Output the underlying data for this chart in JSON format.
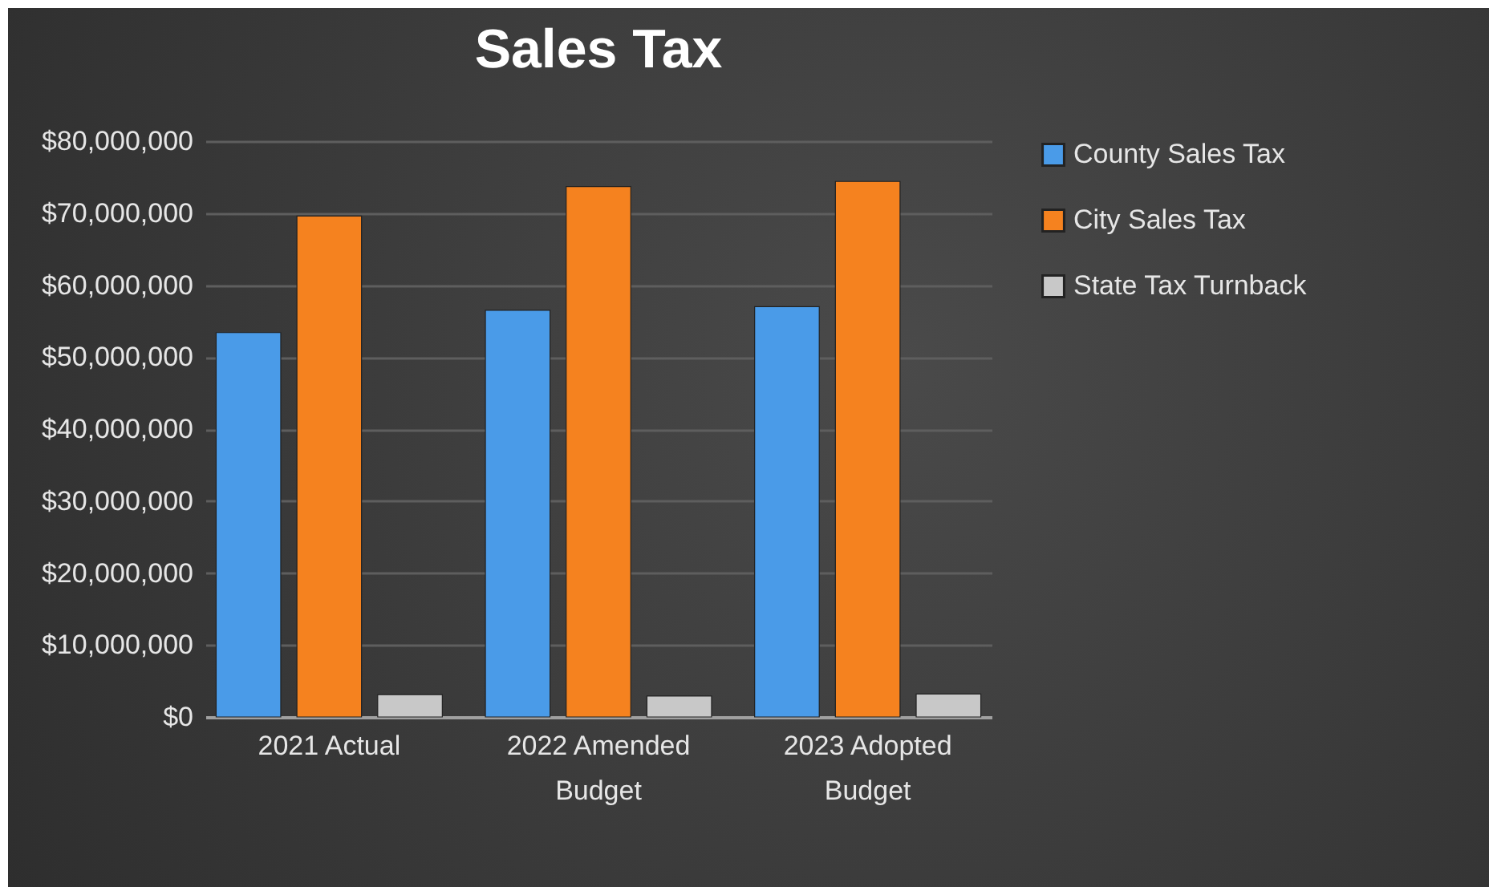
{
  "chart_data": {
    "type": "bar",
    "title": "Sales Tax",
    "categories": [
      "2021 Actual",
      "2022 Amended Budget",
      "2023 Adopted Budget"
    ],
    "series": [
      {
        "name": "County Sales Tax",
        "color": "#4a9be8",
        "values": [
          53400000,
          56500000,
          57000000
        ]
      },
      {
        "name": "City Sales Tax",
        "color": "#f5821f",
        "values": [
          69600000,
          73700000,
          74400000
        ]
      },
      {
        "name": "State Tax Turnback",
        "color": "#c8c8c8",
        "values": [
          3100000,
          2900000,
          3200000
        ]
      }
    ],
    "ylim": [
      0,
      80000000
    ],
    "yticks": [
      {
        "value": 0,
        "label": "$0"
      },
      {
        "value": 10000000,
        "label": "$10,000,000"
      },
      {
        "value": 20000000,
        "label": "$20,000,000"
      },
      {
        "value": 30000000,
        "label": "$30,000,000"
      },
      {
        "value": 40000000,
        "label": "$40,000,000"
      },
      {
        "value": 50000000,
        "label": "$50,000,000"
      },
      {
        "value": 60000000,
        "label": "$60,000,000"
      },
      {
        "value": 70000000,
        "label": "$70,000,000"
      },
      {
        "value": 80000000,
        "label": "$80,000,000"
      }
    ],
    "grid": "y",
    "legend": "right"
  }
}
